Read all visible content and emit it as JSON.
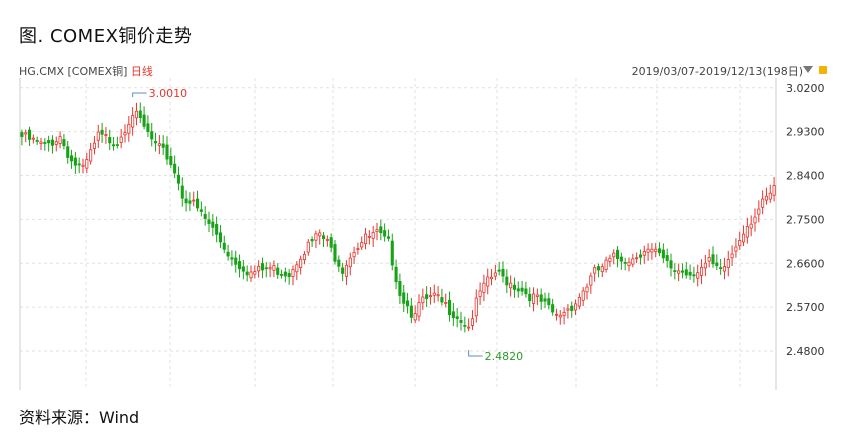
{
  "figure": {
    "title": "图. COMEX铜价走势",
    "source": "资料来源：Wind"
  },
  "chart_header": {
    "ticker": "HG.CMX [COMEX铜]",
    "period": "日线",
    "range": "2019/03/07-2019/12/13(198日)"
  },
  "icons": {
    "dropdown": "triangle-down-icon",
    "lock": "lock-icon"
  },
  "colors": {
    "up": "#e8342d",
    "down": "#17a317",
    "grid": "#e2e2e2",
    "axis": "#cccccc"
  },
  "chart_data": {
    "type": "candlestick",
    "title": "",
    "xlabel": "",
    "ylabel": "",
    "ylim": [
      2.4,
      3.04
    ],
    "y_ticks": [
      "3.0200",
      "2.9300",
      "2.8400",
      "2.7500",
      "2.6600",
      "2.5700",
      "2.4800"
    ],
    "grid": true,
    "n_bars": 198,
    "annotations": [
      {
        "label": "3.0010",
        "type": "high",
        "bar": 29,
        "value": 3.001
      },
      {
        "label": "2.4820",
        "type": "low",
        "bar": 117,
        "value": 2.482
      }
    ],
    "anchors": [
      [
        0,
        2.92
      ],
      [
        6,
        2.9
      ],
      [
        10,
        2.92
      ],
      [
        13,
        2.87
      ],
      [
        16,
        2.85
      ],
      [
        20,
        2.92
      ],
      [
        25,
        2.91
      ],
      [
        29,
        2.97
      ],
      [
        31,
        2.95
      ],
      [
        35,
        2.9
      ],
      [
        38,
        2.88
      ],
      [
        40,
        2.85
      ],
      [
        42,
        2.8
      ],
      [
        45,
        2.78
      ],
      [
        50,
        2.73
      ],
      [
        55,
        2.67
      ],
      [
        60,
        2.64
      ],
      [
        65,
        2.65
      ],
      [
        70,
        2.64
      ],
      [
        73,
        2.68
      ],
      [
        78,
        2.72
      ],
      [
        80,
        2.7
      ],
      [
        84,
        2.65
      ],
      [
        87,
        2.69
      ],
      [
        90,
        2.71
      ],
      [
        93,
        2.72
      ],
      [
        96,
        2.7
      ],
      [
        99,
        2.6
      ],
      [
        102,
        2.56
      ],
      [
        105,
        2.58
      ],
      [
        108,
        2.59
      ],
      [
        113,
        2.56
      ],
      [
        117,
        2.53
      ],
      [
        120,
        2.6
      ],
      [
        124,
        2.64
      ],
      [
        128,
        2.62
      ],
      [
        132,
        2.6
      ],
      [
        136,
        2.58
      ],
      [
        140,
        2.55
      ],
      [
        145,
        2.58
      ],
      [
        150,
        2.64
      ],
      [
        155,
        2.67
      ],
      [
        160,
        2.67
      ],
      [
        163,
        2.69
      ],
      [
        166,
        2.68
      ],
      [
        170,
        2.65
      ],
      [
        175,
        2.64
      ],
      [
        180,
        2.66
      ],
      [
        183,
        2.64
      ],
      [
        186,
        2.68
      ],
      [
        189,
        2.73
      ],
      [
        192,
        2.76
      ],
      [
        195,
        2.79
      ],
      [
        197,
        2.81
      ]
    ]
  }
}
